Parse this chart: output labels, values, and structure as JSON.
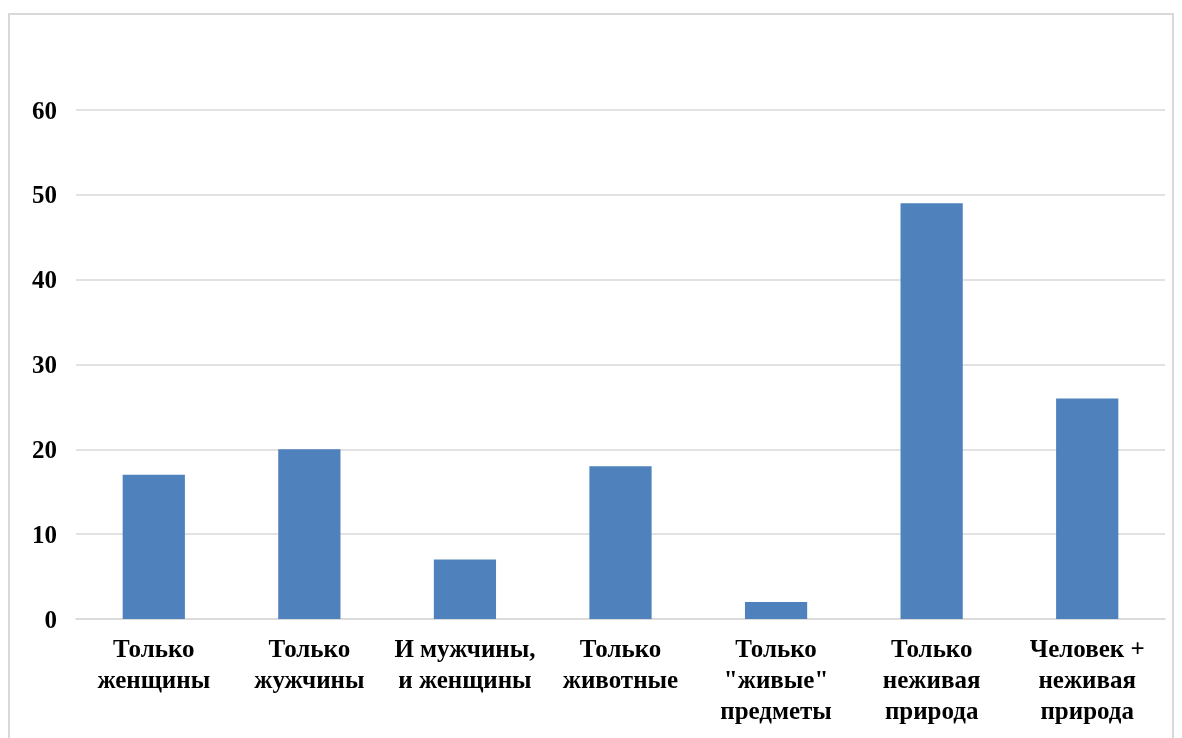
{
  "chart_data": {
    "type": "bar",
    "categories": [
      "Только женщины",
      "Только жужчины",
      "И мужчины, и женщины",
      "Только животные",
      "Только \"живые\" предметы",
      "Только неживая природа",
      "Человек + неживая природа"
    ],
    "values": [
      17,
      20,
      7,
      18,
      2,
      49,
      26
    ],
    "color": "#4f81bd",
    "ylim": [
      0,
      60
    ],
    "yticks": [
      0,
      10,
      20,
      30,
      40,
      50,
      60
    ],
    "grid": "y"
  }
}
